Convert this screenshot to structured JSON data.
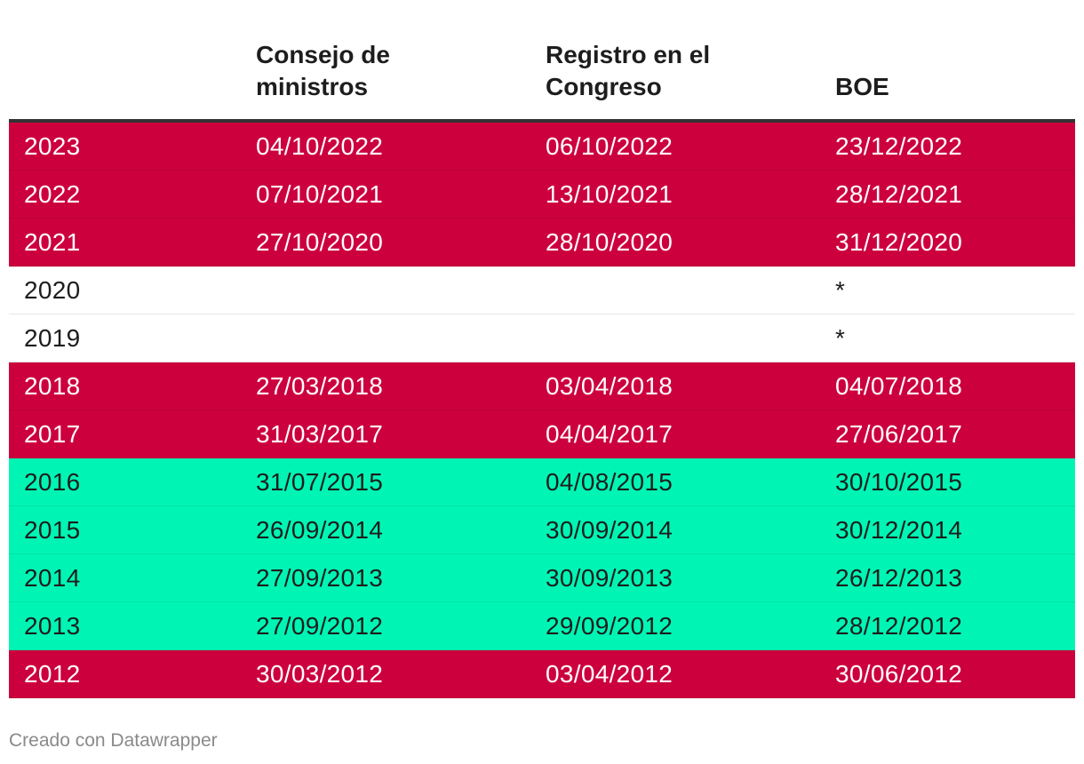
{
  "colors": {
    "red": "#cc003d",
    "green": "#00f5b4",
    "white": "#ffffff",
    "text_on_red": "#ffffff",
    "text_on_light": "#1d1d1d"
  },
  "chart_data": {
    "type": "table",
    "columns": [
      "",
      "Consejo de\nministros",
      "Registro en el\nCongreso",
      "BOE"
    ],
    "rows": [
      {
        "color": "red",
        "cells": [
          "2023",
          "04/10/2022",
          "06/10/2022",
          "23/12/2022"
        ]
      },
      {
        "color": "red",
        "cells": [
          "2022",
          "07/10/2021",
          "13/10/2021",
          "28/12/2021"
        ]
      },
      {
        "color": "red",
        "cells": [
          "2021",
          "27/10/2020",
          "28/10/2020",
          "31/12/2020"
        ]
      },
      {
        "color": "white",
        "cells": [
          "2020",
          "",
          "",
          "*"
        ]
      },
      {
        "color": "white",
        "cells": [
          "2019",
          "",
          "",
          "*"
        ]
      },
      {
        "color": "red",
        "cells": [
          "2018",
          "27/03/2018",
          "03/04/2018",
          "04/07/2018"
        ]
      },
      {
        "color": "red",
        "cells": [
          "2017",
          "31/03/2017",
          "04/04/2017",
          "27/06/2017"
        ]
      },
      {
        "color": "green",
        "cells": [
          "2016",
          "31/07/2015",
          "04/08/2015",
          "30/10/2015"
        ]
      },
      {
        "color": "green",
        "cells": [
          "2015",
          "26/09/2014",
          "30/09/2014",
          "30/12/2014"
        ]
      },
      {
        "color": "green",
        "cells": [
          "2014",
          "27/09/2013",
          "30/09/2013",
          "26/12/2013"
        ]
      },
      {
        "color": "green",
        "cells": [
          "2013",
          "27/09/2012",
          "29/09/2012",
          "28/12/2012"
        ]
      },
      {
        "color": "red",
        "cells": [
          "2012",
          "30/03/2012",
          "03/04/2012",
          "30/06/2012"
        ]
      }
    ]
  },
  "footer": {
    "credit": "Creado con Datawrapper"
  }
}
